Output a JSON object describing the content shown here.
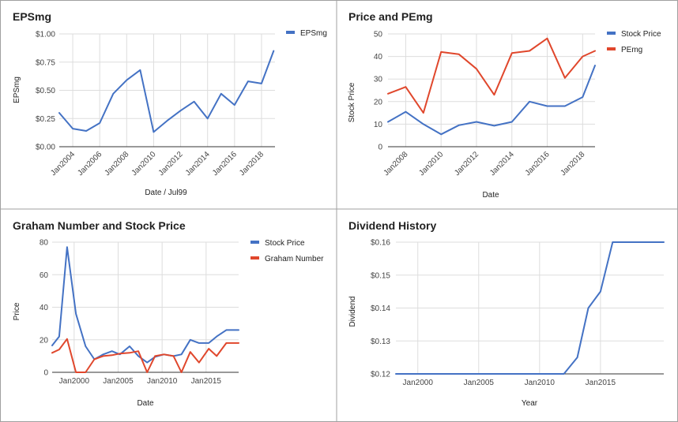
{
  "colors": {
    "blue": "#4472c4",
    "red": "#e0472c",
    "grid": "#dddddd"
  },
  "chart_data": [
    {
      "type": "line",
      "title": "EPSmg",
      "xlabel": "Date / Jul99",
      "ylabel": "EPSmg",
      "x_ticks": [
        "Jan2004",
        "Jan2006",
        "Jan2008",
        "Jan2010",
        "Jan2012",
        "Jan2014",
        "Jan2016",
        "Jan2018"
      ],
      "y_ticks": [
        "$0.00",
        "$0.25",
        "$0.50",
        "$0.75",
        "$1.00"
      ],
      "ylim": [
        0,
        1.0
      ],
      "xlim": [
        2003.0,
        2019.0
      ],
      "legend": "right",
      "series": [
        {
          "name": "EPSmg",
          "color": "#4472c4",
          "x": [
            2003.0,
            2004.0,
            2005.0,
            2006.0,
            2007.0,
            2008.0,
            2009.0,
            2010.0,
            2011.0,
            2012.0,
            2013.0,
            2014.0,
            2015.0,
            2016.0,
            2017.0,
            2018.0,
            2018.9
          ],
          "y": [
            0.3,
            0.16,
            0.14,
            0.21,
            0.47,
            0.59,
            0.68,
            0.13,
            0.23,
            0.32,
            0.4,
            0.25,
            0.47,
            0.37,
            0.58,
            0.56,
            0.85
          ]
        }
      ]
    },
    {
      "type": "line",
      "title": "Price and PEmg",
      "xlabel": "Date",
      "ylabel": "Stock Price",
      "x_ticks": [
        "Jan2008",
        "Jan2010",
        "Jan2012",
        "Jan2014",
        "Jan2016",
        "Jan2018"
      ],
      "y_ticks": [
        "0",
        "10",
        "20",
        "30",
        "40",
        "50"
      ],
      "ylim": [
        0,
        50
      ],
      "xlim": [
        2007.0,
        2018.7
      ],
      "legend": "right",
      "series": [
        {
          "name": "Stock Price",
          "color": "#4472c4",
          "x": [
            2007.0,
            2008.0,
            2009.0,
            2010.0,
            2011.0,
            2012.0,
            2013.0,
            2014.0,
            2015.0,
            2016.0,
            2017.0,
            2018.0,
            2018.7
          ],
          "y": [
            11,
            15.5,
            10,
            5.5,
            9.5,
            11,
            9.3,
            11,
            20,
            18,
            18,
            22,
            36
          ]
        },
        {
          "name": "PEmg",
          "color": "#e0472c",
          "x": [
            2007.0,
            2008.0,
            2009.0,
            2010.0,
            2011.0,
            2012.0,
            2013.0,
            2014.0,
            2015.0,
            2016.0,
            2017.0,
            2018.0,
            2018.7
          ],
          "y": [
            23.5,
            26.5,
            15,
            42,
            41,
            34.5,
            23,
            41.5,
            42.5,
            48,
            30.5,
            40,
            42.5
          ]
        }
      ]
    },
    {
      "type": "line",
      "title": "Graham Number and Stock Price",
      "xlabel": "Date",
      "ylabel": "Price",
      "x_ticks": [
        "Jan2000",
        "Jan2005",
        "Jan2010",
        "Jan2015"
      ],
      "y_ticks": [
        "0",
        "20",
        "40",
        "60",
        "80"
      ],
      "ylim": [
        0,
        80
      ],
      "xlim": [
        1997.5,
        2018.7
      ],
      "legend": "right",
      "series": [
        {
          "name": "Stock Price",
          "color": "#4472c4",
          "x": [
            1997.5,
            1998.3,
            1999.2,
            2000.2,
            2001.3,
            2002.3,
            2003.3,
            2004.3,
            2005.2,
            2006.3,
            2007.3,
            2008.3,
            2009.2,
            2010.2,
            2011.3,
            2012.2,
            2013.2,
            2014.2,
            2015.3,
            2016.2,
            2017.3,
            2018.7
          ],
          "y": [
            16.5,
            22,
            77,
            36,
            16,
            8,
            11,
            13,
            11,
            16,
            10,
            6,
            9.5,
            11,
            10,
            11,
            20,
            18,
            18,
            22,
            26,
            26
          ]
        },
        {
          "name": "Graham Number",
          "color": "#e0472c",
          "x": [
            1997.5,
            1998.3,
            1999.2,
            2000.2,
            2001.3,
            2002.3,
            2003.3,
            2004.3,
            2005.2,
            2006.3,
            2007.3,
            2008.3,
            2009.2,
            2010.2,
            2011.3,
            2012.2,
            2013.2,
            2014.2,
            2015.3,
            2016.2,
            2017.3,
            2018.7
          ],
          "y": [
            12,
            14,
            20.5,
            0,
            0,
            8,
            10,
            10.5,
            11.5,
            12,
            13,
            0,
            10,
            11,
            10,
            0,
            12.5,
            6,
            14.5,
            10,
            18,
            18
          ]
        }
      ]
    },
    {
      "type": "line",
      "title": "Dividend History",
      "xlabel": "Year",
      "ylabel": "Dividend",
      "x_ticks": [
        "Jan2000",
        "Jan2005",
        "Jan2010",
        "Jan2015"
      ],
      "y_ticks": [
        "$0.12",
        "$0.13",
        "$0.14",
        "$0.15",
        "$0.16"
      ],
      "ylim": [
        0.12,
        0.16
      ],
      "xlim": [
        1998.2,
        2020.2
      ],
      "legend": "none",
      "series": [
        {
          "name": "",
          "color": "#4472c4",
          "x": [
            1998.2,
            2012.0,
            2013.1,
            2014.0,
            2015.0,
            2016.0,
            2017.0,
            2020.2
          ],
          "y": [
            0.12,
            0.12,
            0.125,
            0.14,
            0.145,
            0.16,
            0.16,
            0.16
          ]
        }
      ]
    }
  ]
}
